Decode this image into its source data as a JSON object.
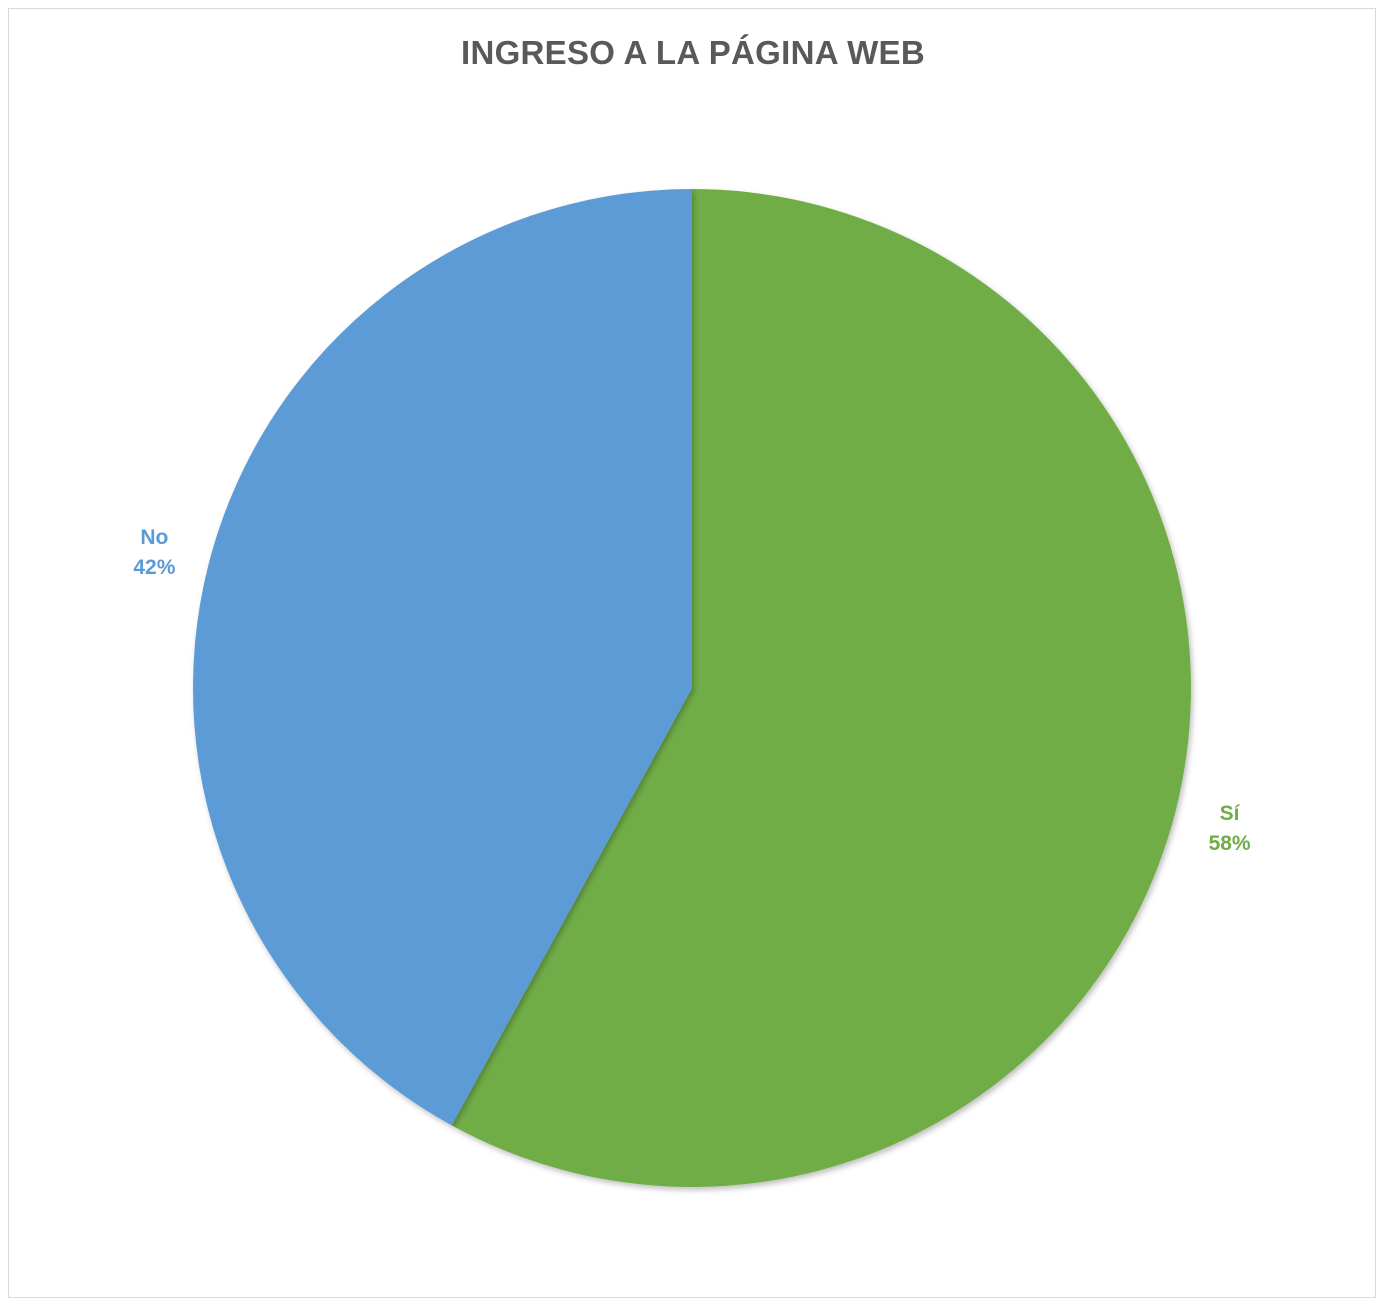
{
  "chart_data": {
    "type": "pie",
    "title": "INGRESO A LA PÁGINA WEB",
    "categories": [
      "Sí",
      "No"
    ],
    "values": [
      58,
      42
    ],
    "value_labels": [
      "58%",
      "42%"
    ],
    "colors": [
      "#70ad47",
      "#5b9bd5"
    ],
    "start_angle": "top",
    "direction": "clockwise",
    "legend": "none",
    "data_labels": "outside"
  },
  "colors": {
    "title": "#595959",
    "border": "#d9d9d9",
    "background": "#ffffff"
  }
}
